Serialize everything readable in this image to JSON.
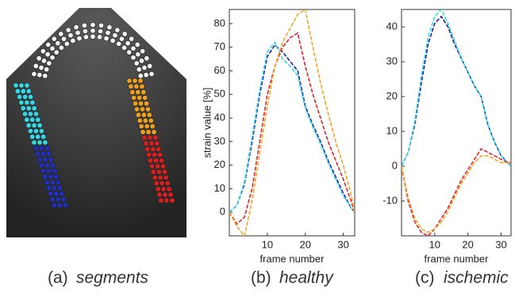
{
  "captions": [
    {
      "label": "(a)",
      "text": "segments"
    }
  ],
  "chart_data": [
    {
      "type": "line",
      "label": "(b)",
      "caption": "healthy",
      "ylabel": "strain value [%]",
      "xlabel": "frame number",
      "x": [
        0,
        2,
        4,
        6,
        8,
        10,
        12,
        14,
        16,
        18,
        20,
        22,
        24,
        26,
        28,
        30,
        32,
        33
      ],
      "xlim": [
        0,
        33
      ],
      "xticks": [
        10,
        20,
        30
      ],
      "ylim": [
        -10,
        86
      ],
      "yticks": [
        0,
        10,
        20,
        30,
        40,
        50,
        60,
        70,
        80
      ],
      "series": [
        {
          "color": "#1c1ca8",
          "values": [
            0,
            3,
            12,
            30,
            50,
            66,
            71,
            68,
            64,
            60,
            45,
            37,
            30,
            22,
            15,
            8,
            2,
            0
          ]
        },
        {
          "color": "#2fd8ea",
          "values": [
            0,
            3,
            13,
            32,
            52,
            68,
            72,
            65,
            62,
            58,
            44,
            36,
            29,
            21,
            14,
            7,
            2,
            0
          ]
        },
        {
          "color": "#e02424",
          "values": [
            0,
            -5,
            -2,
            10,
            30,
            50,
            62,
            70,
            74,
            76,
            62,
            50,
            40,
            30,
            22,
            14,
            5,
            0
          ]
        },
        {
          "color": "#f2a424",
          "values": [
            0,
            -6,
            -10,
            5,
            25,
            45,
            62,
            72,
            78,
            84,
            86,
            70,
            55,
            42,
            30,
            20,
            8,
            0
          ]
        }
      ]
    },
    {
      "type": "line",
      "label": "(c)",
      "caption": "ischemic",
      "xlabel": "frame number",
      "x": [
        0,
        2,
        4,
        6,
        8,
        10,
        12,
        14,
        16,
        18,
        20,
        22,
        24,
        26,
        28,
        30,
        32,
        33
      ],
      "xlim": [
        0,
        33
      ],
      "xticks": [
        10,
        20,
        30
      ],
      "ylim": [
        -20,
        45
      ],
      "yticks": [
        -10,
        0,
        10,
        20,
        30,
        40
      ],
      "series": [
        {
          "color": "#1c1ca8",
          "values": [
            0,
            4,
            12,
            24,
            35,
            41,
            43,
            40,
            35,
            31,
            27,
            23,
            20,
            12,
            7,
            3,
            1,
            0
          ]
        },
        {
          "color": "#2fd8ea",
          "values": [
            0,
            4,
            13,
            26,
            37,
            43,
            45,
            41,
            36,
            31,
            27,
            23,
            20,
            12,
            7,
            3,
            1,
            0
          ]
        },
        {
          "color": "#e02424",
          "values": [
            0,
            -10,
            -16,
            -19,
            -20,
            -18,
            -15,
            -12,
            -8,
            -4,
            -1,
            2,
            5,
            4,
            3,
            2,
            1,
            1
          ]
        },
        {
          "color": "#f2a424",
          "values": [
            0,
            -9,
            -15,
            -18,
            -19,
            -18,
            -16,
            -13,
            -9,
            -5,
            -2,
            1,
            3,
            3,
            2,
            1,
            1,
            1
          ]
        }
      ]
    }
  ]
}
